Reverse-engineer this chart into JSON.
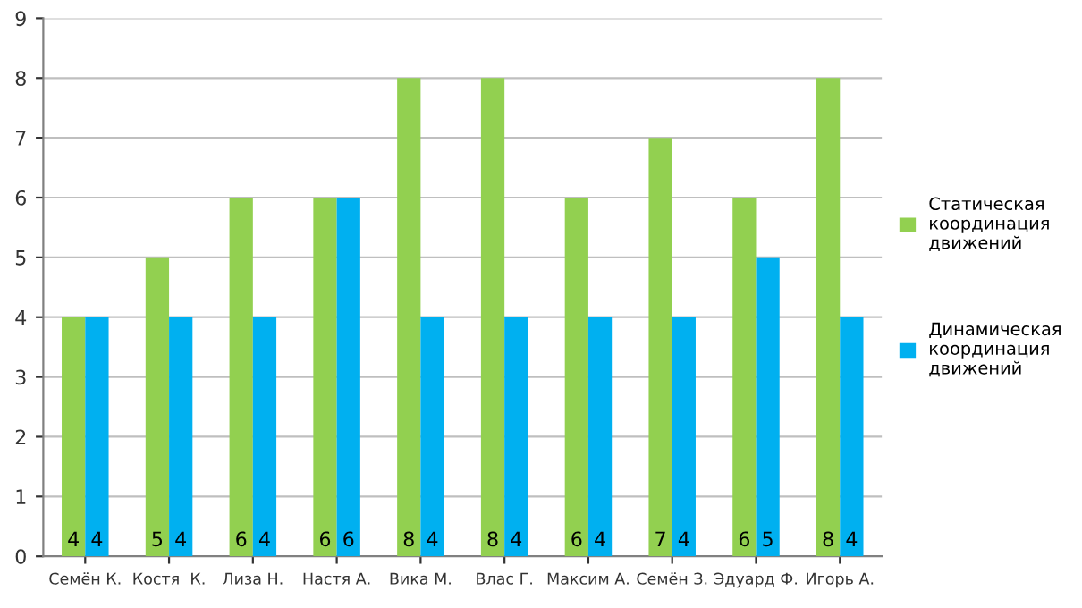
{
  "chart_data": {
    "type": "bar",
    "categories": [
      "Семён К.",
      "Костя  К.",
      "Лиза Н.",
      "Настя А.",
      "Вика М.",
      "Влас Г.",
      "Максим А.",
      "Семён З.",
      "Эдуард Ф.",
      "Игорь А."
    ],
    "series": [
      {
        "name": "Статическая координация движений",
        "color": "#92d050",
        "values": [
          4,
          5,
          6,
          6,
          8,
          8,
          6,
          7,
          6,
          8
        ]
      },
      {
        "name": "Динамическая координация движений",
        "color": "#00b0f0",
        "values": [
          4,
          4,
          4,
          6,
          4,
          4,
          4,
          4,
          5,
          4
        ]
      }
    ],
    "ylim": [
      0,
      9
    ],
    "yticks": [
      0,
      1,
      2,
      3,
      4,
      5,
      6,
      7,
      8,
      9
    ],
    "grid": "y",
    "legend": "right",
    "data_labels": true
  }
}
